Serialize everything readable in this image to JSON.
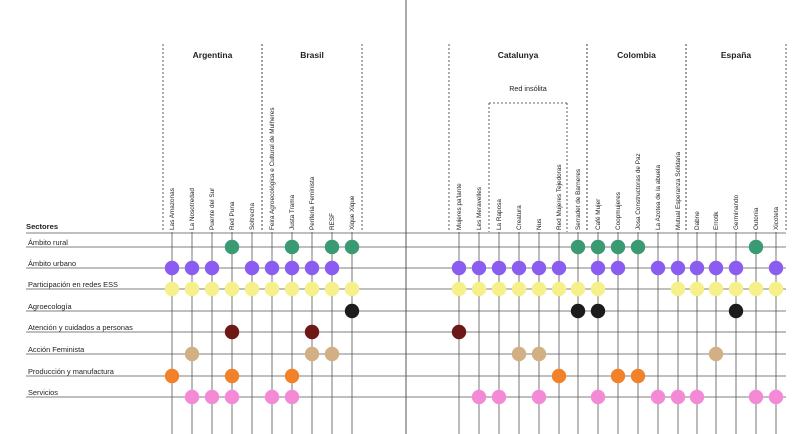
{
  "chart_data": {
    "type": "dot-matrix",
    "title": "",
    "ylabel": "Sectores",
    "sectors": [
      "Ámbito rural",
      "Ámbito urbano",
      "Participación en redes ESS",
      "Agroecología",
      "Atención y cuidados a personas",
      "Acción Feminista",
      "Producción y manufactura",
      "Servicios"
    ],
    "sector_colors": [
      "#3a9b73",
      "#8b5cf0",
      "#f5f08a",
      "#1c1c1c",
      "#6e1717",
      "#d2b083",
      "#f2822a",
      "#f48ad6"
    ],
    "countries": [
      {
        "name": "Argentina",
        "entities": [
          "Las Amazonas",
          "La Nosotredad",
          "Puente del Sur",
          "Red Puna",
          "Soltrecha"
        ]
      },
      {
        "name": "Brasil",
        "entities": [
          "Feira Agroecológica e Cultural de Mulheres",
          "Justa Trama",
          "Periferia Feminista",
          "RESF",
          "Xique Xique"
        ]
      },
      {
        "name": "Catalunya",
        "entities": [
          "Mujeres pa'lante",
          "Les Meravelles",
          "La Raposa",
          "Creatura",
          "Nus",
          "Red Mujeres Tejedoras",
          "Serradet de Barneres"
        ]
      },
      {
        "name": "Colombia",
        "entities": [
          "Café Mujer",
          "Coopmujeres",
          "Josa Constructoras de Paz",
          "La Azotea de la abuela",
          "Mutual Esperanza Solidaria"
        ]
      },
      {
        "name": "España",
        "entities": [
          "Dabne",
          "Errotik",
          "Germinando",
          "Outonia",
          "Xicoteta"
        ]
      }
    ],
    "subgroup": {
      "label": "Red insólita",
      "entities": [
        "La Raposa",
        "Creatura",
        "Nus",
        "Red Mujeres Tejedoras"
      ]
    },
    "values": [
      [
        0,
        0,
        0,
        1,
        0,
        0,
        1,
        0,
        1,
        1,
        0,
        0,
        0,
        0,
        0,
        0,
        1,
        1,
        1,
        1,
        0,
        0,
        0,
        0,
        0,
        1,
        0
      ],
      [
        1,
        1,
        1,
        0,
        1,
        1,
        1,
        1,
        1,
        0,
        1,
        1,
        1,
        1,
        1,
        1,
        0,
        1,
        1,
        0,
        1,
        1,
        1,
        1,
        1,
        0,
        1
      ],
      [
        1,
        1,
        1,
        1,
        1,
        1,
        1,
        1,
        1,
        1,
        1,
        1,
        1,
        1,
        1,
        1,
        1,
        1,
        0,
        0,
        0,
        1,
        1,
        1,
        1,
        1,
        1
      ],
      [
        0,
        0,
        0,
        0,
        0,
        0,
        0,
        0,
        0,
        1,
        0,
        0,
        0,
        0,
        0,
        0,
        1,
        1,
        0,
        0,
        0,
        0,
        0,
        0,
        1,
        0,
        0
      ],
      [
        0,
        0,
        0,
        1,
        0,
        0,
        0,
        1,
        0,
        0,
        1,
        0,
        0,
        0,
        0,
        0,
        0,
        0,
        0,
        0,
        0,
        0,
        0,
        0,
        0,
        0,
        0
      ],
      [
        0,
        1,
        0,
        0,
        0,
        0,
        0,
        1,
        1,
        0,
        0,
        0,
        0,
        1,
        1,
        0,
        0,
        0,
        0,
        0,
        0,
        0,
        0,
        1,
        0,
        0,
        0
      ],
      [
        1,
        0,
        0,
        1,
        0,
        0,
        1,
        0,
        0,
        0,
        0,
        0,
        0,
        0,
        0,
        1,
        0,
        0,
        1,
        1,
        0,
        0,
        0,
        0,
        0,
        0,
        0
      ],
      [
        0,
        1,
        1,
        1,
        0,
        1,
        1,
        0,
        0,
        0,
        0,
        1,
        1,
        0,
        1,
        0,
        0,
        1,
        0,
        0,
        1,
        1,
        1,
        0,
        0,
        1,
        1
      ]
    ]
  }
}
